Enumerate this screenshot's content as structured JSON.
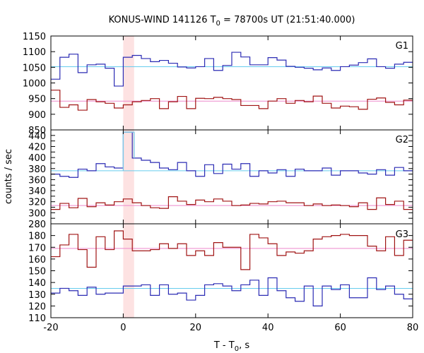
{
  "chart_data": {
    "type": "line",
    "title_prefix": "KONUS-WIND 141126 T",
    "title_sub": "0",
    "title_suffix": " = 78700s UT (21:51:40.000)",
    "xlabel_prefix": "T - T",
    "xlabel_sub": "0",
    "xlabel_suffix": ", s",
    "ylabel": "counts / sec",
    "xlim": [
      -20,
      80
    ],
    "xticks": [
      -20,
      0,
      20,
      40,
      60,
      80
    ],
    "highlight_interval": [
      0,
      3
    ],
    "colors": {
      "blue_step": "#2b2bb4",
      "red_step": "#a01414",
      "blue_bg": "#66ccee",
      "red_bg": "#ee88cc",
      "highlight": "#fde2e2",
      "g2_highlight_step": "#7ec8e8"
    },
    "bin_edges": [
      -20,
      -17.5,
      -15,
      -12.5,
      -10,
      -7.5,
      -5,
      -2.5,
      0,
      2.5,
      5,
      7.5,
      10,
      12.5,
      15,
      17.5,
      20,
      22.5,
      25,
      27.5,
      30,
      32.5,
      35,
      37.5,
      40,
      42.5,
      45,
      47.5,
      50,
      52.5,
      55,
      57.5,
      60,
      62.5,
      65,
      67.5,
      70,
      72.5,
      75,
      77.5,
      80
    ],
    "panels": [
      {
        "name": "G1",
        "ylim": [
          850,
          1150
        ],
        "yticks": [
          850,
          900,
          950,
          1000,
          1050,
          1100,
          1150
        ],
        "background_levels": [
          1052,
          942
        ],
        "series": [
          {
            "color": "blue",
            "values": [
              1012,
              1082,
              1092,
              1033,
              1058,
              1060,
              1047,
              990,
              1082,
              1088,
              1078,
              1068,
              1072,
              1063,
              1051,
              1048,
              1052,
              1078,
              1040,
              1056,
              1098,
              1083,
              1058,
              1058,
              1081,
              1073,
              1053,
              1050,
              1047,
              1042,
              1048,
              1040,
              1052,
              1057,
              1065,
              1077,
              1052,
              1047,
              1060,
              1066
            ]
          },
          {
            "color": "red",
            "values": [
              977,
              922,
              930,
              913,
              947,
              940,
              935,
              920,
              930,
              940,
              944,
              950,
              918,
              940,
              957,
              918,
              951,
              950,
              954,
              950,
              947,
              928,
              928,
              918,
              942,
              950,
              935,
              944,
              940,
              958,
              935,
              920,
              926,
              924,
              916,
              948,
              952,
              938,
              930,
              945
            ]
          }
        ]
      },
      {
        "name": "G2",
        "ylim": [
          280,
          450
        ],
        "yticks": [
          280,
          290,
          300,
          310,
          320,
          330,
          340,
          350,
          360,
          370,
          380,
          390,
          400,
          410,
          420,
          430,
          440
        ],
        "ytick_labels": [
          280,
          300,
          320,
          340,
          360,
          380,
          400,
          420,
          440
        ],
        "background_levels": [
          376,
          313
        ],
        "highlight_step_value": 446,
        "series": [
          {
            "color": "blue",
            "values": [
              370,
              366,
              364,
              379,
              376,
              389,
              383,
              381,
              446,
              399,
              395,
              391,
              381,
              378,
              391,
              376,
              366,
              387,
              371,
              388,
              379,
              389,
              366,
              376,
              372,
              378,
              366,
              379,
              376,
              376,
              381,
              368,
              376,
              376,
              372,
              370,
              378,
              368,
              382,
              376
            ]
          },
          {
            "color": "red",
            "values": [
              306,
              317,
              309,
              326,
              311,
              318,
              314,
              320,
              325,
              318,
              313,
              309,
              308,
              329,
              321,
              315,
              323,
              320,
              325,
              321,
              313,
              314,
              317,
              316,
              320,
              321,
              318,
              318,
              313,
              316,
              313,
              314,
              313,
              311,
              318,
              306,
              327,
              315,
              321,
              306
            ]
          }
        ]
      },
      {
        "name": "G3",
        "ylim": [
          110,
          190
        ],
        "yticks": [
          110,
          120,
          130,
          140,
          150,
          160,
          170,
          180
        ],
        "background_levels": [
          135,
          169
        ],
        "series": [
          {
            "color": "red",
            "values": [
              162,
              172,
              181,
              168,
              153,
              179,
              168,
              184,
              177,
              167,
              167,
              168,
              173,
              169,
              173,
              163,
              167,
              163,
              174,
              170,
              170,
              151,
              181,
              178,
              173,
              163,
              166,
              165,
              167,
              177,
              179,
              180,
              181,
              180,
              180,
              171,
              167,
              179,
              163,
              176
            ]
          },
          {
            "color": "blue",
            "values": [
              131,
              135,
              133,
              129,
              136,
              130,
              131,
              131,
              137,
              137,
              138,
              129,
              138,
              130,
              131,
              125,
              129,
              138,
              139,
              137,
              133,
              138,
              142,
              129,
              144,
              133,
              127,
              124,
              137,
              120,
              137,
              134,
              138,
              127,
              127,
              144,
              134,
              137,
              130,
              126
            ]
          }
        ]
      }
    ]
  }
}
